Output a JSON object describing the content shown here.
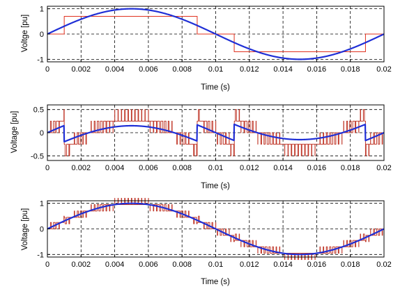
{
  "colors": {
    "sine": "#1f2fd6",
    "square": "#e0301e",
    "pwm": "#c0392b",
    "axis": "#000000",
    "grid": "#000000"
  },
  "chart_data": [
    {
      "type": "line",
      "xlabel": "Time (s)",
      "ylabel": "Voltge [pu]",
      "xlim": [
        0,
        0.02
      ],
      "ylim": [
        -1.1,
        1.1
      ],
      "xticks": [
        0,
        0.002,
        0.004,
        0.006,
        0.008,
        0.01,
        0.012,
        0.014,
        0.016,
        0.018,
        0.02
      ],
      "xtick_labels": [
        "0",
        "0.002",
        "0.004",
        "0.006",
        "0.008",
        "0.01",
        "0.012",
        "0.014",
        "0.016",
        "0.018",
        "0.02"
      ],
      "yticks": [
        -1,
        0,
        1
      ],
      "ytick_labels": [
        "-1",
        "0",
        "1"
      ],
      "grid": true,
      "series": [
        {
          "kind": "sine",
          "amplitude": 1.0,
          "frequency_hz": 50,
          "color": "#1f2fd6"
        },
        {
          "kind": "square",
          "x": [
            0,
            0.001,
            0.001,
            0.0089,
            0.0089,
            0.0111,
            0.0111,
            0.0189,
            0.0189,
            0.02
          ],
          "y": [
            0,
            0,
            0.7,
            0.7,
            0,
            0,
            -0.7,
            -0.7,
            0,
            0
          ],
          "color": "#e0301e"
        }
      ]
    },
    {
      "type": "line",
      "xlabel": "Time (s)",
      "ylabel": "Voltage [pu]",
      "xlim": [
        0,
        0.02
      ],
      "ylim": [
        -0.6,
        0.6
      ],
      "xticks": [
        0,
        0.002,
        0.004,
        0.006,
        0.008,
        0.01,
        0.012,
        0.014,
        0.016,
        0.018,
        0.02
      ],
      "xtick_labels": [
        "0",
        "0.002",
        "0.004",
        "0.006",
        "0.008",
        "0.01",
        "0.012",
        "0.014",
        "0.016",
        "0.018",
        "0.02"
      ],
      "yticks": [
        -0.5,
        0,
        0.5
      ],
      "ytick_labels": [
        "-0.5",
        "0",
        "0.5"
      ],
      "grid": true,
      "series": [
        {
          "kind": "error_sine",
          "amplitude": 0.5,
          "frequency_hz": 50,
          "breaks": [
            0.001,
            0.0089,
            0.0111,
            0.0189
          ],
          "color": "#1f2fd6"
        },
        {
          "kind": "pwm_of_error",
          "levels": 0.25,
          "color": "#c0392b"
        }
      ]
    },
    {
      "type": "line",
      "xlabel": "Time (s)",
      "ylabel": "Voltage [pu]",
      "xlim": [
        0,
        0.02
      ],
      "ylim": [
        -1.1,
        1.1
      ],
      "xticks": [
        0,
        0.002,
        0.004,
        0.006,
        0.008,
        0.01,
        0.012,
        0.014,
        0.016,
        0.018,
        0.02
      ],
      "xtick_labels": [
        "0",
        "0.002",
        "0.004",
        "0.006",
        "0.008",
        "0.01",
        "0.012",
        "0.014",
        "0.016",
        "0.018",
        "0.02"
      ],
      "yticks": [
        -1,
        0,
        1
      ],
      "ytick_labels": [
        "-1",
        "0",
        "1"
      ],
      "grid": true,
      "series": [
        {
          "kind": "sine",
          "amplitude": 1.0,
          "frequency_hz": 50,
          "color": "#1f2fd6"
        },
        {
          "kind": "pwm_total",
          "color": "#c0392b"
        }
      ]
    }
  ]
}
